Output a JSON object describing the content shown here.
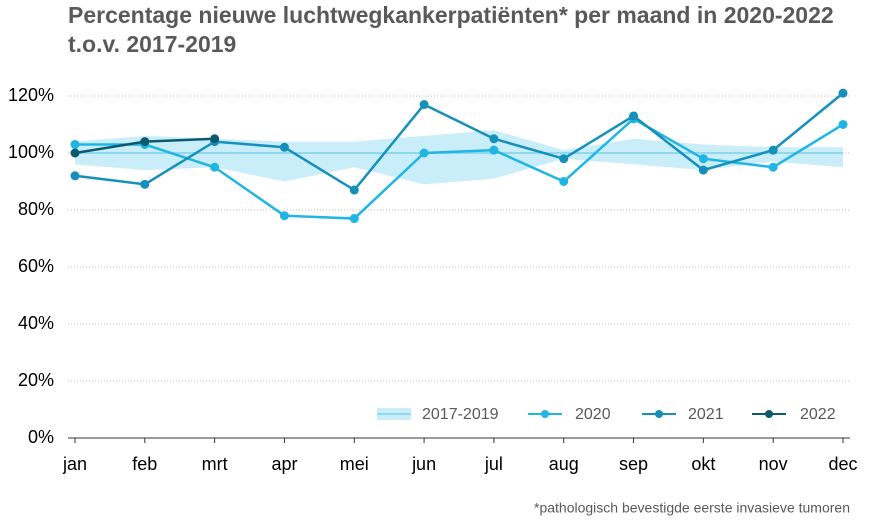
{
  "chart_data": {
    "type": "line",
    "title": [
      "Percentage nieuwe luchtwegkankerpatiënten* per maand in 2020-2022",
      "t.o.v. 2017-2019"
    ],
    "footnote": "*pathologisch bevestigde eerste invasieve tumoren",
    "categories": [
      "jan",
      "feb",
      "mrt",
      "apr",
      "mei",
      "jun",
      "jul",
      "aug",
      "sep",
      "okt",
      "nov",
      "dec"
    ],
    "ylim": [
      0,
      130
    ],
    "yticks": [
      {
        "value": 0,
        "label": "0%"
      },
      {
        "value": 20,
        "label": "20%"
      },
      {
        "value": 40,
        "label": "40%"
      },
      {
        "value": 60,
        "label": "60%"
      },
      {
        "value": 80,
        "label": "80%"
      },
      {
        "value": 100,
        "label": "100%"
      },
      {
        "value": 120,
        "label": "120%"
      }
    ],
    "grid": true,
    "legend": "bottom-right",
    "band": {
      "name": "2017-2019",
      "color": "#8fd8ee",
      "fill": "#c9eef9",
      "values": [
        100,
        100,
        100,
        100,
        100,
        100,
        100,
        100,
        100,
        100,
        100,
        100
      ],
      "lower": [
        96,
        94,
        95,
        90,
        95,
        89,
        91,
        98,
        96,
        94,
        97,
        95
      ],
      "upper": [
        104,
        106,
        105,
        104,
        104,
        106,
        108,
        101,
        105,
        103,
        102,
        102
      ]
    },
    "series": [
      {
        "name": "2020",
        "color": "#1fb5e5",
        "values": [
          103,
          103,
          95,
          78,
          77,
          100,
          101,
          90,
          112,
          98,
          95,
          110
        ]
      },
      {
        "name": "2021",
        "color": "#1490bb",
        "values": [
          92,
          89,
          104,
          102,
          87,
          117,
          105,
          98,
          113,
          94,
          101,
          121
        ]
      },
      {
        "name": "2022",
        "color": "#0b5a70",
        "values": [
          100,
          104,
          105,
          null,
          null,
          null,
          null,
          null,
          null,
          null,
          null,
          null
        ]
      }
    ]
  }
}
